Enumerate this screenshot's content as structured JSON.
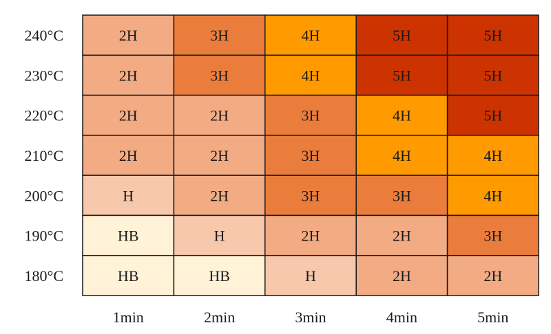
{
  "chart_data": {
    "type": "heatmap",
    "title": "",
    "xlabel": "",
    "ylabel": "",
    "x_categories": [
      "1min",
      "2min",
      "3min",
      "4min",
      "5min"
    ],
    "y_categories": [
      "240°C",
      "230°C",
      "220°C",
      "210°C",
      "200°C",
      "190°C",
      "180°C"
    ],
    "values": [
      [
        "2H",
        "3H",
        "4H",
        "5H",
        "5H"
      ],
      [
        "2H",
        "3H",
        "4H",
        "5H",
        "5H"
      ],
      [
        "2H",
        "2H",
        "3H",
        "4H",
        "5H"
      ],
      [
        "2H",
        "2H",
        "3H",
        "4H",
        "4H"
      ],
      [
        "H",
        "2H",
        "3H",
        "3H",
        "4H"
      ],
      [
        "HB",
        "H",
        "2H",
        "2H",
        "3H"
      ],
      [
        "HB",
        "HB",
        "H",
        "2H",
        "2H"
      ]
    ],
    "colors": {
      "HB": "#fff2d6",
      "H": "#f7c8ac",
      "2H": "#f2ab83",
      "3H": "#eb7d3c",
      "4H": "#ff9a00",
      "5H": "#cc3300"
    },
    "grid": true,
    "legend": "none"
  }
}
